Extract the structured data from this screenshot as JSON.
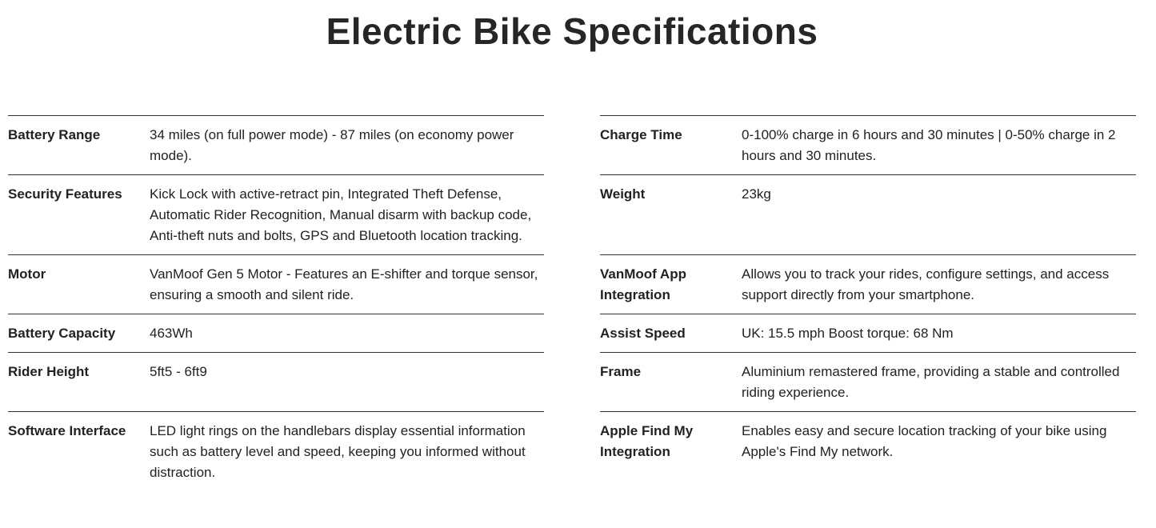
{
  "title": "Electric Bike Specifications",
  "rows": [
    [
      {
        "label": "Battery Range",
        "value": "34 miles (on full power mode) - 87 miles (on economy power mode)."
      },
      {
        "label": "Charge Time",
        "value": "0-100% charge in 6 hours and 30 minutes | 0-50% charge in 2 hours and 30 minutes."
      }
    ],
    [
      {
        "label": "Security Features",
        "value": "Kick Lock with active-retract pin, Integrated Theft Defense, Automatic Rider Recognition, Manual disarm with backup code, Anti-theft nuts and bolts, GPS and Bluetooth location tracking."
      },
      {
        "label": "Weight",
        "value": "23kg"
      }
    ],
    [
      {
        "label": "Motor",
        "value": "VanMoof Gen 5 Motor - Features an E-shifter and torque sensor, ensuring a smooth and silent ride."
      },
      {
        "label": "VanMoof App Integration",
        "value": "Allows you to track your rides, configure settings, and access support directly from your smartphone."
      }
    ],
    [
      {
        "label": "Battery Capacity",
        "value": "463Wh"
      },
      {
        "label": "Assist Speed",
        "value": "UK: 15.5 mph Boost torque: 68 Nm"
      }
    ],
    [
      {
        "label": "Rider Height",
        "value": "5ft5 - 6ft9"
      },
      {
        "label": "Frame",
        "value": "Aluminium remastered frame, providing a stable and controlled riding experience."
      }
    ],
    [
      {
        "label": "Software Interface",
        "value": "LED light rings on the handlebars display essential information such as battery level and speed, keeping you informed without distraction."
      },
      {
        "label": "Apple Find My Integration",
        "value": "Enables easy and secure location tracking of your bike using Apple's Find My network."
      }
    ]
  ]
}
